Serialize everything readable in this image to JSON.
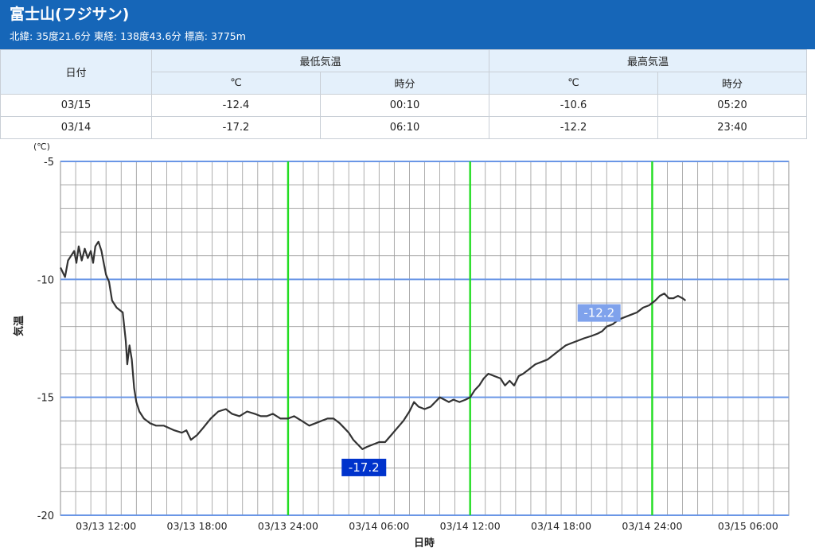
{
  "header": {
    "title": "富士山(フジサン)",
    "subtitle": "北緯: 35度21.6分 東経: 138度43.6分 標高: 3775m"
  },
  "table": {
    "date_header": "日付",
    "min_header": "最低気温",
    "max_header": "最高気温",
    "unit_c": "℃",
    "unit_time": "時分",
    "rows": [
      {
        "date": "03/15",
        "min": "-12.4",
        "min_time": "00:10",
        "max": "-10.6",
        "max_time": "05:20"
      },
      {
        "date": "03/14",
        "min": "-17.2",
        "min_time": "06:10",
        "max": "-12.2",
        "max_time": "23:40"
      }
    ]
  },
  "chart_data": {
    "type": "line",
    "unit_label": "(℃)",
    "ylabel": "気温",
    "xlabel": "日時",
    "ylim": [
      -20,
      -5
    ],
    "yticks": [
      "-5",
      "-10",
      "-15",
      "-20"
    ],
    "xticks": [
      "03/13 12:00",
      "03/13 18:00",
      "03/13 24:00",
      "03/14 06:00",
      "03/14 12:00",
      "03/14 18:00",
      "03/14 24:00",
      "03/15 06:00"
    ],
    "xlim_hours": [
      -3,
      21
    ],
    "grid": true,
    "colors": {
      "line": "#333333",
      "day_boundary": "#22dd22",
      "major_grid": "#6a96e6",
      "grid": "#999999",
      "min_label": "#0033cc",
      "max_label": "#7fa2ec"
    },
    "series": [
      {
        "points": [
          [
            -3.0,
            -9.5
          ],
          [
            -2.7,
            -9.9
          ],
          [
            -2.5,
            -9.2
          ],
          [
            -2.3,
            -9.0
          ],
          [
            -2.1,
            -8.8
          ],
          [
            -1.95,
            -9.3
          ],
          [
            -1.8,
            -8.6
          ],
          [
            -1.6,
            -9.2
          ],
          [
            -1.4,
            -8.7
          ],
          [
            -1.2,
            -9.1
          ],
          [
            -1.0,
            -8.8
          ],
          [
            -0.85,
            -9.3
          ],
          [
            -0.7,
            -8.6
          ],
          [
            -0.5,
            -8.4
          ],
          [
            -0.3,
            -8.8
          ],
          [
            -0.15,
            -9.3
          ],
          [
            0.0,
            -9.8
          ],
          [
            0.2,
            -10.1
          ],
          [
            0.4,
            -10.9
          ],
          [
            0.7,
            -11.2
          ],
          [
            0.9,
            -11.3
          ],
          [
            1.1,
            -11.4
          ],
          [
            1.3,
            -12.6
          ],
          [
            1.4,
            -13.6
          ],
          [
            1.55,
            -12.8
          ],
          [
            1.7,
            -13.4
          ],
          [
            1.85,
            -14.6
          ],
          [
            2.0,
            -15.2
          ],
          [
            2.2,
            -15.6
          ],
          [
            2.5,
            -15.9
          ],
          [
            2.9,
            -16.1
          ],
          [
            3.3,
            -16.2
          ],
          [
            3.8,
            -16.2
          ],
          [
            4.5,
            -16.4
          ],
          [
            5.0,
            -16.5
          ],
          [
            5.3,
            -16.4
          ],
          [
            5.6,
            -16.8
          ],
          [
            6.0,
            -16.6
          ],
          [
            6.4,
            -16.3
          ],
          [
            6.9,
            -15.9
          ],
          [
            7.4,
            -15.6
          ],
          [
            7.9,
            -15.5
          ],
          [
            8.3,
            -15.7
          ],
          [
            8.8,
            -15.8
          ],
          [
            9.3,
            -15.6
          ],
          [
            9.8,
            -15.7
          ],
          [
            10.2,
            -15.8
          ],
          [
            10.6,
            -15.8
          ],
          [
            11.0,
            -15.7
          ],
          [
            11.5,
            -15.9
          ],
          [
            12.0,
            -15.9
          ],
          [
            12.4,
            -15.8
          ],
          [
            12.9,
            -16.0
          ],
          [
            13.4,
            -16.2
          ],
          [
            13.8,
            -16.1
          ],
          [
            14.2,
            -16.0
          ],
          [
            14.6,
            -15.9
          ],
          [
            15.0,
            -15.9
          ],
          [
            15.4,
            -16.1
          ],
          [
            15.7,
            -16.3
          ],
          [
            16.0,
            -16.5
          ],
          [
            16.3,
            -16.8
          ],
          [
            16.6,
            -17.0
          ],
          [
            16.9,
            -17.2
          ],
          [
            17.2,
            -17.1
          ],
          [
            17.6,
            -17.0
          ],
          [
            18.0,
            -16.9
          ],
          [
            18.4,
            -16.9
          ],
          [
            18.8,
            -16.6
          ],
          [
            19.2,
            -16.3
          ],
          [
            19.6,
            -16.0
          ],
          [
            20.0,
            -15.6
          ],
          [
            20.3,
            -15.2
          ],
          [
            20.6,
            -15.4
          ],
          [
            21.0,
            -15.5
          ],
          [
            21.4,
            -15.4
          ],
          [
            21.7,
            -15.2
          ],
          [
            22.0,
            -15.0
          ],
          [
            22.3,
            -15.1
          ],
          [
            22.6,
            -15.2
          ],
          [
            22.9,
            -15.1
          ],
          [
            23.3,
            -15.2
          ],
          [
            23.7,
            -15.1
          ],
          [
            24.0,
            -15.0
          ],
          [
            24.3,
            -14.7
          ],
          [
            24.6,
            -14.5
          ],
          [
            24.9,
            -14.2
          ],
          [
            25.2,
            -14.0
          ],
          [
            25.6,
            -14.1
          ],
          [
            26.0,
            -14.2
          ],
          [
            26.3,
            -14.5
          ],
          [
            26.6,
            -14.3
          ],
          [
            26.9,
            -14.5
          ],
          [
            27.2,
            -14.1
          ],
          [
            27.5,
            -14.0
          ],
          [
            27.9,
            -13.8
          ],
          [
            28.3,
            -13.6
          ],
          [
            28.7,
            -13.5
          ],
          [
            29.1,
            -13.4
          ],
          [
            29.5,
            -13.2
          ],
          [
            29.9,
            -13.0
          ],
          [
            30.3,
            -12.8
          ],
          [
            30.7,
            -12.7
          ],
          [
            31.1,
            -12.6
          ],
          [
            31.5,
            -12.5
          ],
          [
            32.0,
            -12.4
          ],
          [
            32.4,
            -12.3
          ],
          [
            32.7,
            -12.2
          ],
          [
            33.0,
            -12.0
          ],
          [
            33.4,
            -11.9
          ],
          [
            33.8,
            -11.7
          ],
          [
            34.2,
            -11.6
          ],
          [
            34.6,
            -11.5
          ],
          [
            35.0,
            -11.4
          ],
          [
            35.4,
            -11.2
          ],
          [
            35.8,
            -11.1
          ],
          [
            36.2,
            -10.9
          ],
          [
            36.5,
            -10.7
          ],
          [
            36.8,
            -10.6
          ],
          [
            37.1,
            -10.8
          ],
          [
            37.4,
            -10.8
          ],
          [
            37.7,
            -10.7
          ],
          [
            38.0,
            -10.8
          ],
          [
            38.2,
            -10.9
          ]
        ]
      }
    ],
    "annotations": {
      "min": {
        "label": "-17.2",
        "x": 17.0,
        "y": -17.2
      },
      "max": {
        "label": "-12.2",
        "x": 32.5,
        "y": -12.2
      }
    }
  }
}
